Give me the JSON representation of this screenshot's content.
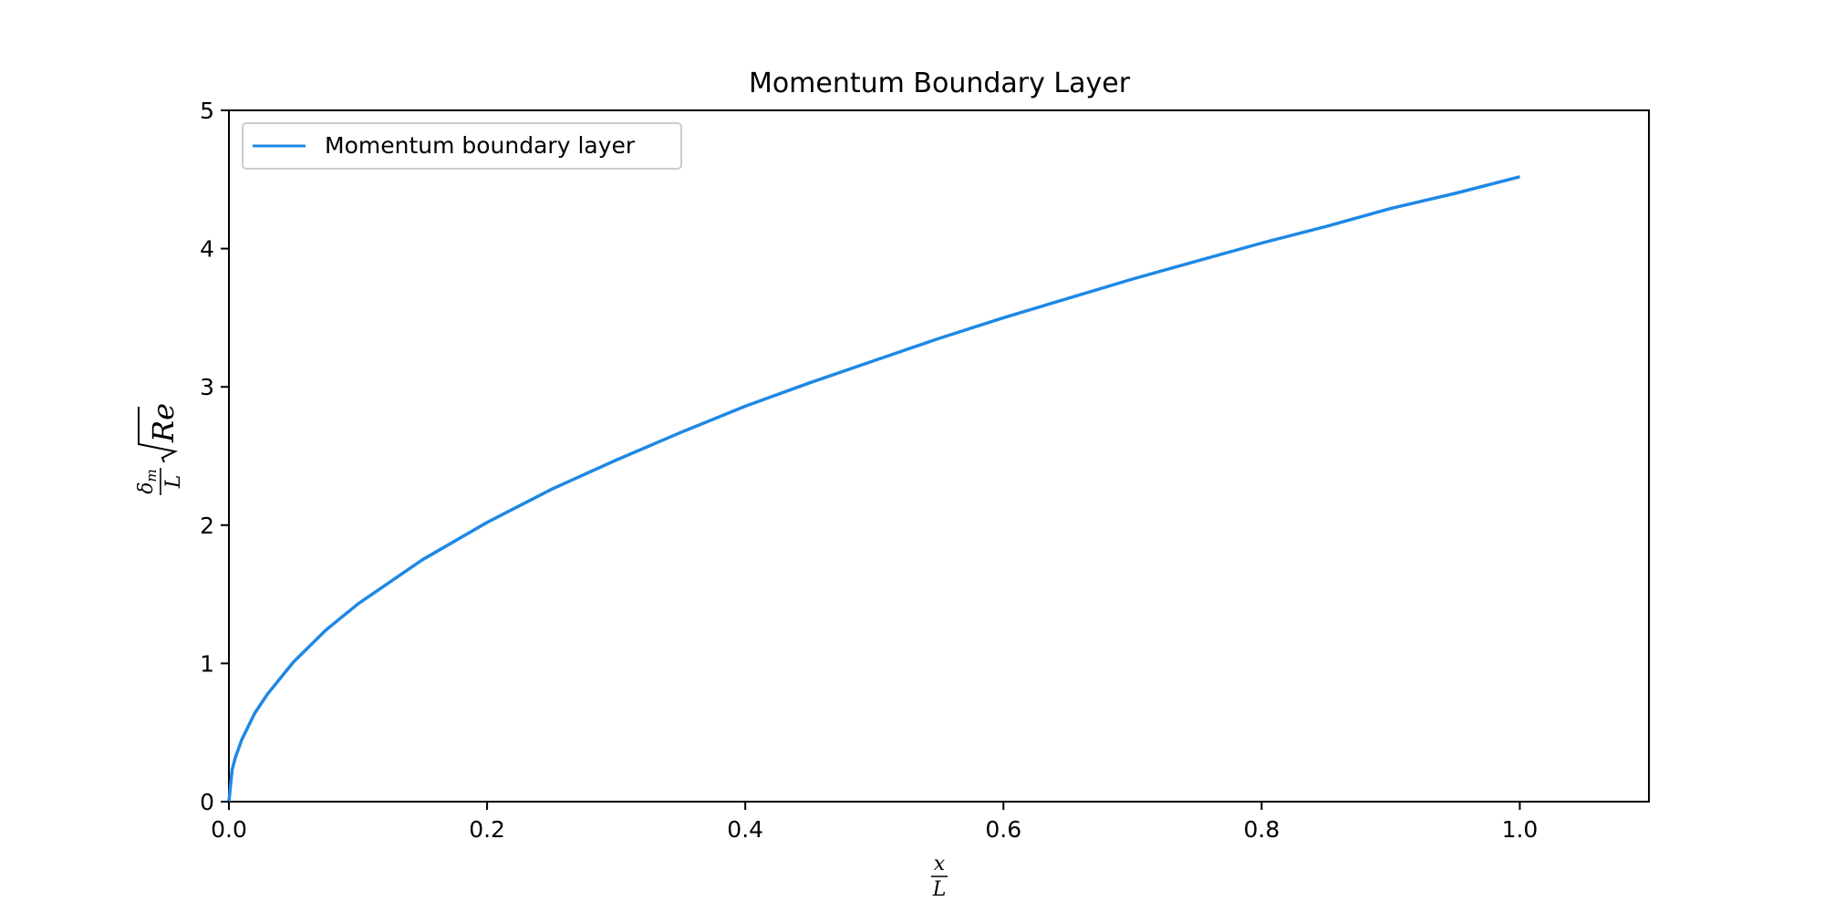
{
  "chart_data": {
    "type": "line",
    "title": "Momentum Boundary Layer",
    "xlabel": {
      "numerator": "x",
      "denominator": "L"
    },
    "ylabel": {
      "numerator": "δ",
      "subscript": "m",
      "denominator": "L",
      "radical": "√",
      "radicand": "Re"
    },
    "xlim": [
      0,
      1.1
    ],
    "ylim": [
      0,
      5
    ],
    "xticks": [
      0.0,
      0.2,
      0.4,
      0.6,
      0.8,
      1.0
    ],
    "xtick_labels": [
      "0.0",
      "0.2",
      "0.4",
      "0.6",
      "0.8",
      "1.0"
    ],
    "yticks": [
      0,
      1,
      2,
      3,
      4,
      5
    ],
    "ytick_labels": [
      "0",
      "1",
      "2",
      "3",
      "4",
      "5"
    ],
    "grid": false,
    "legend": {
      "position": "upper-left",
      "entries": [
        "Momentum boundary layer"
      ]
    },
    "series": [
      {
        "name": "Momentum boundary layer",
        "color": "#1e88e5",
        "x": [
          0,
          0.0025,
          0.005,
          0.01,
          0.02,
          0.03,
          0.05,
          0.075,
          0.1,
          0.15,
          0.2,
          0.25,
          0.3,
          0.35,
          0.4,
          0.45,
          0.5,
          0.55,
          0.6,
          0.65,
          0.7,
          0.75,
          0.8,
          0.85,
          0.9,
          0.95,
          1.0
        ],
        "y": [
          0,
          0.23,
          0.32,
          0.45,
          0.64,
          0.78,
          1.01,
          1.24,
          1.43,
          1.75,
          2.02,
          2.26,
          2.47,
          2.67,
          2.86,
          3.03,
          3.19,
          3.35,
          3.5,
          3.64,
          3.78,
          3.91,
          4.04,
          4.16,
          4.29,
          4.4,
          4.52
        ]
      }
    ]
  }
}
